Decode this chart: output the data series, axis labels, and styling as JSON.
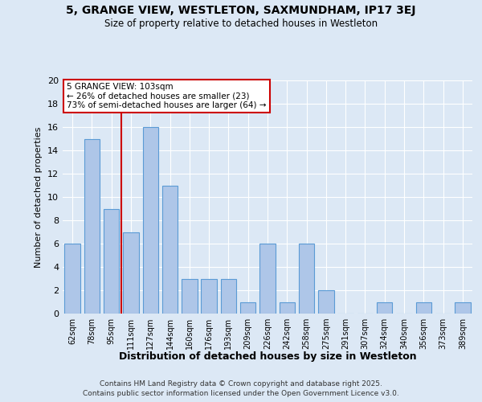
{
  "title": "5, GRANGE VIEW, WESTLETON, SAXMUNDHAM, IP17 3EJ",
  "subtitle": "Size of property relative to detached houses in Westleton",
  "xlabel": "Distribution of detached houses by size in Westleton",
  "ylabel": "Number of detached properties",
  "categories": [
    "62sqm",
    "78sqm",
    "95sqm",
    "111sqm",
    "127sqm",
    "144sqm",
    "160sqm",
    "176sqm",
    "193sqm",
    "209sqm",
    "226sqm",
    "242sqm",
    "258sqm",
    "275sqm",
    "291sqm",
    "307sqm",
    "324sqm",
    "340sqm",
    "356sqm",
    "373sqm",
    "389sqm"
  ],
  "values": [
    6,
    15,
    9,
    7,
    16,
    11,
    3,
    3,
    3,
    1,
    6,
    1,
    6,
    2,
    0,
    0,
    1,
    0,
    1,
    0,
    1
  ],
  "bar_color": "#aec6e8",
  "bar_edge_color": "#5b9bd5",
  "property_label": "5 GRANGE VIEW: 103sqm",
  "annotation_line1": "← 26% of detached houses are smaller (23)",
  "annotation_line2": "73% of semi-detached houses are larger (64) →",
  "box_color": "#ffffff",
  "box_edge_color": "#cc0000",
  "vline_color": "#cc0000",
  "background_color": "#dce8f5",
  "ylim": [
    0,
    20
  ],
  "yticks": [
    0,
    2,
    4,
    6,
    8,
    10,
    12,
    14,
    16,
    18,
    20
  ],
  "footer1": "Contains HM Land Registry data © Crown copyright and database right 2025.",
  "footer2": "Contains public sector information licensed under the Open Government Licence v3.0."
}
